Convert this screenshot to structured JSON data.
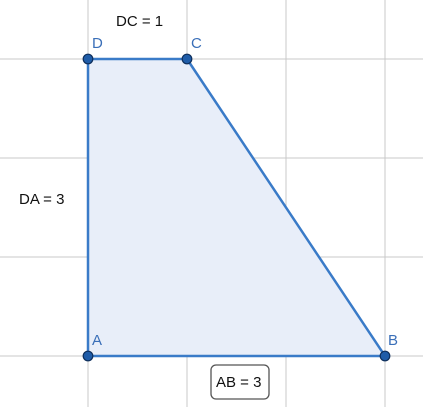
{
  "diagram": {
    "grid_unit": 1,
    "vertices": [
      {
        "id": "A",
        "label": "A",
        "x": 0,
        "y": 0
      },
      {
        "id": "B",
        "label": "B",
        "x": 3,
        "y": 0
      },
      {
        "id": "C",
        "label": "C",
        "x": 1,
        "y": 3
      },
      {
        "id": "D",
        "label": "D",
        "x": 0,
        "y": 3
      }
    ],
    "polygon_order": [
      "A",
      "B",
      "C",
      "D"
    ],
    "measurements": {
      "dc": "DC = 1",
      "da": "DA = 3",
      "ab": "AB = 3"
    },
    "colors": {
      "edge": "#3a7bc8",
      "fill": "#e8eef9",
      "vertex": "#1f5ca8",
      "label": "#3a6fb8",
      "grid": "#c8c8c8"
    }
  }
}
